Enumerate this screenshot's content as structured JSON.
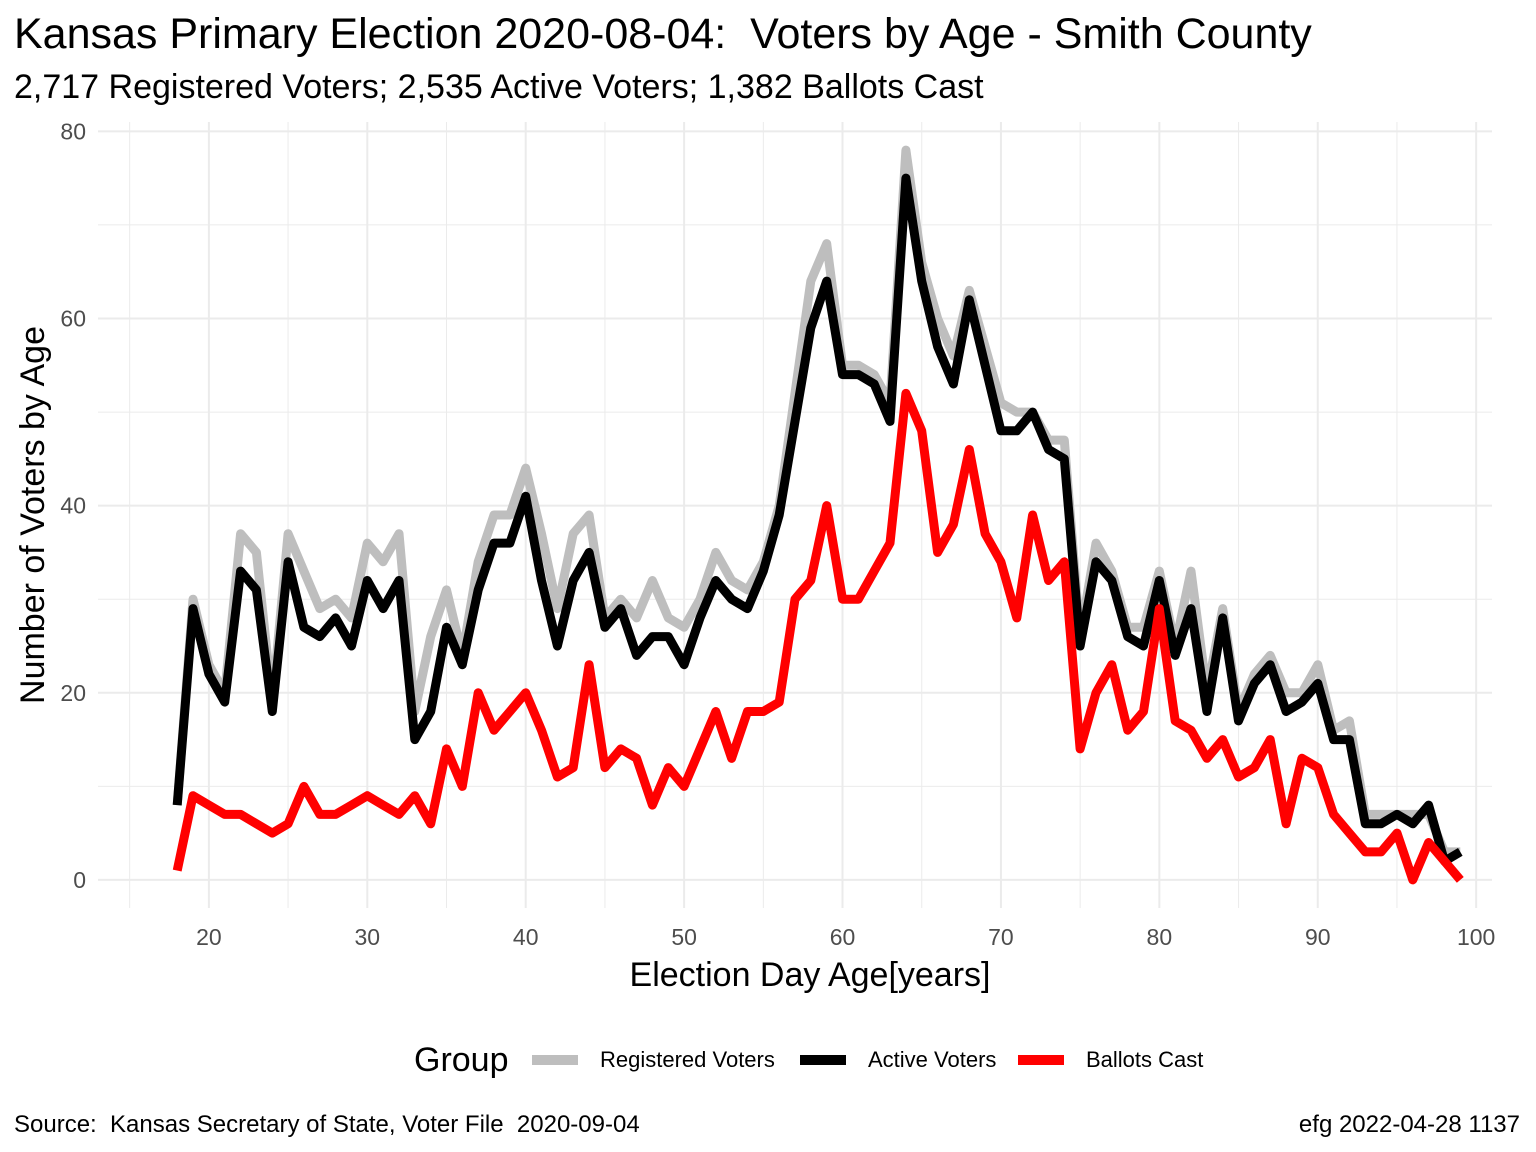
{
  "title": "Kansas Primary Election 2020-08-04:  Voters by Age - Smith County",
  "subtitle": "2,717 Registered Voters; 2,535 Active Voters; 1,382 Ballots Cast",
  "caption_left": "Source:  Kansas Secretary of State, Voter File  2020-09-04",
  "caption_right": "efg 2022-04-28 1137",
  "legend_title": "Group",
  "colors": {
    "registered": "#bebebe",
    "active": "#000000",
    "ballots": "#ff0000",
    "grid": "#ebebeb"
  },
  "chart_data": {
    "type": "line",
    "title": "Kansas Primary Election 2020-08-04:  Voters by Age - Smith County",
    "subtitle": "2,717 Registered Voters; 2,535 Active Voters; 1,382 Ballots Cast",
    "xlabel": "Election Day Age[years]",
    "ylabel": "Number of Voters by Age",
    "xlim": [
      13,
      101
    ],
    "ylim": [
      -3,
      81
    ],
    "xticks": [
      20,
      30,
      40,
      50,
      60,
      70,
      80,
      90,
      100
    ],
    "yticks": [
      0,
      20,
      40,
      60,
      80
    ],
    "grid": true,
    "legend_position": "bottom",
    "x": [
      18,
      19,
      20,
      21,
      22,
      23,
      24,
      25,
      26,
      27,
      28,
      29,
      30,
      31,
      32,
      33,
      34,
      35,
      36,
      37,
      38,
      39,
      40,
      41,
      42,
      43,
      44,
      45,
      46,
      47,
      48,
      49,
      50,
      51,
      52,
      53,
      54,
      55,
      56,
      57,
      58,
      59,
      60,
      61,
      62,
      63,
      64,
      65,
      66,
      67,
      68,
      69,
      70,
      71,
      72,
      73,
      74,
      75,
      76,
      77,
      78,
      79,
      80,
      81,
      82,
      83,
      84,
      85,
      86,
      87,
      88,
      89,
      90,
      91,
      92,
      93,
      94,
      95,
      96,
      97,
      98,
      99
    ],
    "series": [
      {
        "name": "Registered Voters",
        "color": "#bebebe",
        "values": [
          8,
          30,
          23,
          20,
          37,
          35,
          19,
          37,
          33,
          29,
          30,
          28,
          36,
          34,
          37,
          18,
          26,
          31,
          24,
          34,
          39,
          39,
          44,
          37,
          29,
          37,
          39,
          28,
          30,
          28,
          32,
          28,
          27,
          30,
          35,
          32,
          31,
          34,
          40,
          52,
          64,
          68,
          55,
          55,
          54,
          51,
          78,
          66,
          60,
          56,
          63,
          57,
          51,
          50,
          50,
          47,
          47,
          26,
          36,
          33,
          27,
          27,
          33,
          25,
          33,
          20,
          29,
          18,
          22,
          24,
          20,
          20,
          23,
          16,
          17,
          7,
          7,
          7,
          7,
          7,
          3,
          3
        ]
      },
      {
        "name": "Active Voters",
        "color": "#000000",
        "values": [
          8,
          29,
          22,
          19,
          33,
          31,
          18,
          34,
          27,
          26,
          28,
          25,
          32,
          29,
          32,
          15,
          18,
          27,
          23,
          31,
          36,
          36,
          41,
          32,
          25,
          32,
          35,
          27,
          29,
          24,
          26,
          26,
          23,
          28,
          32,
          30,
          29,
          33,
          39,
          49,
          59,
          64,
          54,
          54,
          53,
          49,
          75,
          64,
          57,
          53,
          62,
          55,
          48,
          48,
          50,
          46,
          45,
          25,
          34,
          32,
          26,
          25,
          32,
          24,
          29,
          18,
          28,
          17,
          21,
          23,
          18,
          19,
          21,
          15,
          15,
          6,
          6,
          7,
          6,
          8,
          2,
          3
        ]
      },
      {
        "name": "Ballots Cast",
        "color": "#ff0000",
        "values": [
          1,
          9,
          8,
          7,
          7,
          6,
          5,
          6,
          10,
          7,
          7,
          8,
          9,
          8,
          7,
          9,
          6,
          14,
          10,
          20,
          16,
          18,
          20,
          16,
          11,
          12,
          23,
          12,
          14,
          13,
          8,
          12,
          10,
          14,
          18,
          13,
          18,
          18,
          19,
          30,
          32,
          40,
          30,
          30,
          33,
          36,
          52,
          48,
          35,
          38,
          46,
          37,
          34,
          28,
          39,
          32,
          34,
          14,
          20,
          23,
          16,
          18,
          29,
          17,
          16,
          13,
          15,
          11,
          12,
          15,
          6,
          13,
          12,
          7,
          5,
          3,
          3,
          5,
          0,
          4,
          2,
          0
        ]
      }
    ]
  }
}
